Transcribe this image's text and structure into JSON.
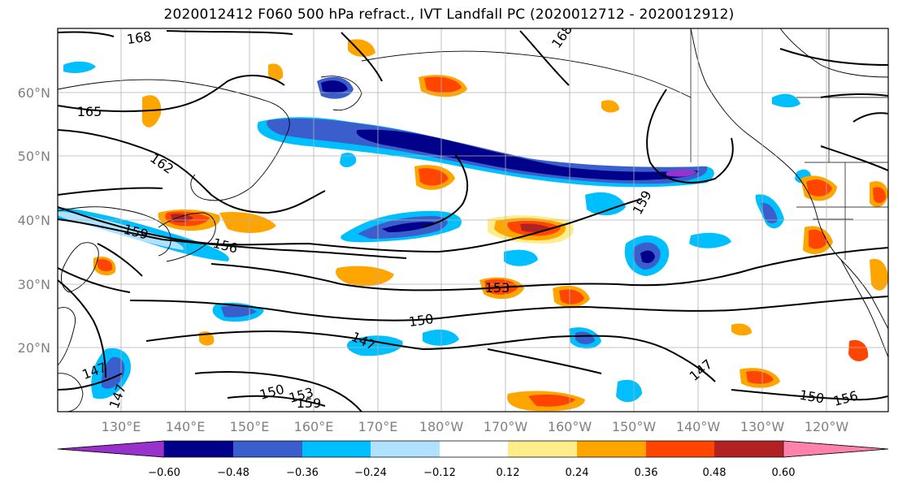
{
  "title": "2020012412 F060 500 hPa refract., IVT Landfall PC (2020012712 - 2020012912)",
  "map": {
    "lon_labels": [
      "130°E",
      "140°E",
      "150°E",
      "160°E",
      "170°E",
      "180°W",
      "170°W",
      "160°W",
      "150°W",
      "140°W",
      "130°W",
      "120°W"
    ],
    "lat_labels": [
      "60°N",
      "50°N",
      "40°N",
      "30°N",
      "20°N"
    ],
    "contour_labels": [
      "168",
      "168",
      "165",
      "162",
      "159",
      "156",
      "159",
      "153",
      "150",
      "147",
      "147",
      "147",
      "150",
      "153",
      "159",
      "150",
      "156",
      "147"
    ]
  },
  "colorbar": {
    "tick_labels": [
      "−0.60",
      "−0.48",
      "−0.36",
      "−0.24",
      "−0.12",
      "0.12",
      "0.24",
      "0.36",
      "0.48",
      "0.60"
    ],
    "colors": [
      "#9932cc",
      "#00008b",
      "#3a5fcd",
      "#00bfff",
      "#b0e2ff",
      "#ffffff",
      "#ffec8b",
      "#ffa500",
      "#ff4500",
      "#b22222",
      "#ff82ab"
    ]
  }
}
